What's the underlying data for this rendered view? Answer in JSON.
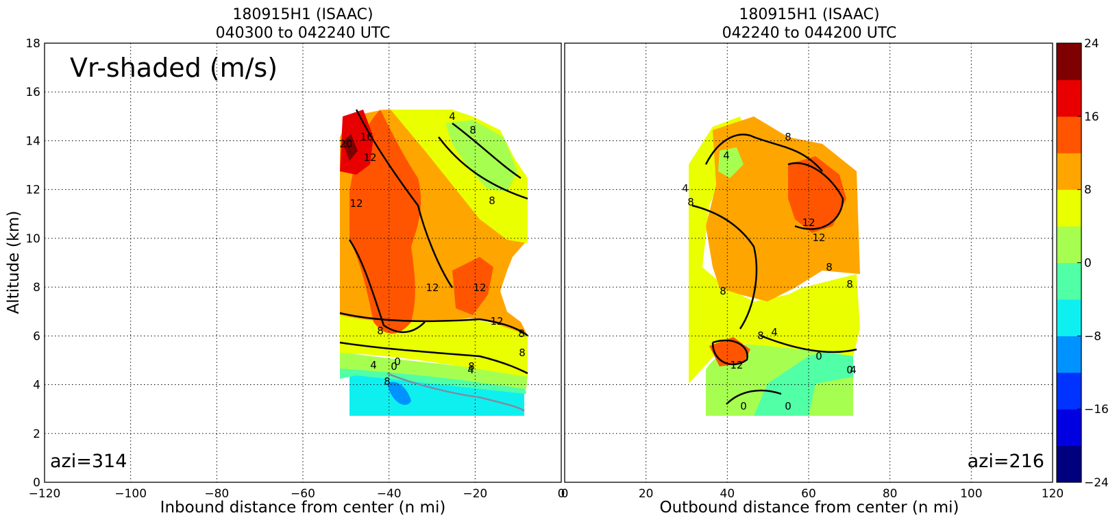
{
  "chart_data": {
    "type": "heatmap",
    "variable_label": "Vr-shaded (m/s)",
    "colorbar": {
      "ticks": [
        "24",
        "16",
        "8",
        "0",
        "−8",
        "−16",
        "−24"
      ],
      "levels": [
        -24,
        -20,
        -16,
        -12,
        -8,
        -4,
        0,
        4,
        8,
        12,
        16,
        20,
        24
      ],
      "colors": [
        "#00007f",
        "#0000e0",
        "#0033ff",
        "#0092ff",
        "#0ef0f0",
        "#50ffa6",
        "#a6ff50",
        "#eaff00",
        "#ffa500",
        "#ff5500",
        "#e80000",
        "#7f0000"
      ]
    },
    "panels": [
      {
        "title_line1": "180915H1 (ISAAC)",
        "title_line2": "040300 to 042240 UTC",
        "xlabel": "Inbound distance from center (n mi)",
        "ylabel": "Altitude (km)",
        "xlim": [
          -120,
          0
        ],
        "ylim": [
          0,
          18
        ],
        "xticks": [
          "−120",
          "−100",
          "−80",
          "−60",
          "−40",
          "−20",
          "0"
        ],
        "yticks": [
          "0",
          "2",
          "4",
          "6",
          "8",
          "10",
          "12",
          "14",
          "16",
          "18"
        ],
        "annotation": "azi=314",
        "grid": true,
        "contour_labels": [
          "20",
          "16",
          "12",
          "12",
          "8",
          "4",
          "0",
          "8",
          "8",
          "12",
          "12",
          "12",
          "8",
          "8",
          "8",
          "4",
          "0",
          "4",
          "8"
        ]
      },
      {
        "title_line1": "180915H1 (ISAAC)",
        "title_line2": "042240 to 044200 UTC",
        "xlabel": "Outbound distance from center (n mi)",
        "ylabel": "",
        "xlim": [
          0,
          120
        ],
        "ylim": [
          0,
          18
        ],
        "xticks": [
          "0",
          "20",
          "40",
          "60",
          "80",
          "100",
          "120"
        ],
        "yticks": [],
        "annotation": "azi=216",
        "grid": true,
        "contour_labels": [
          "4",
          "4",
          "8",
          "8",
          "12",
          "12",
          "8",
          "4",
          "8",
          "8",
          "12",
          "8",
          "4",
          "0",
          "0",
          "0",
          "0"
        ]
      }
    ],
    "field_bands_inbound": [
      {
        "level": "-8 to -4",
        "z_range": [
          2.7,
          3.6
        ]
      },
      {
        "level": "0 to 4",
        "z_range": [
          3.6,
          5.3
        ]
      },
      {
        "level": "4 to 8",
        "z_range": [
          5.3,
          7.0
        ]
      },
      {
        "level": "8 to 12",
        "z_range": [
          7.0,
          15.2
        ]
      },
      {
        "level": "12 to 16",
        "z_range": [
          6.4,
          15.4
        ]
      },
      {
        "level": "16 to 24",
        "z_range": [
          13.0,
          15.2
        ]
      }
    ],
    "field_bands_outbound": [
      {
        "level": "0 to 4",
        "z_range": [
          2.7,
          5.0
        ]
      },
      {
        "level": "4 to 8",
        "z_range": [
          3.9,
          13.5
        ]
      },
      {
        "level": "8 to 12",
        "z_range": [
          4.2,
          14.9
        ]
      },
      {
        "level": "12 to 16",
        "z_range": [
          9.6,
          13.1
        ]
      }
    ]
  }
}
